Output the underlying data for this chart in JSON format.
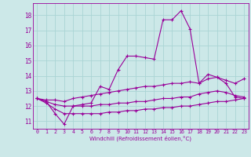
{
  "xlabel": "Windchill (Refroidissement éolien,°C)",
  "background_color": "#cce8e8",
  "grid_color": "#aad4d4",
  "line_color": "#990099",
  "xlim": [
    -0.5,
    23.5
  ],
  "ylim": [
    10.5,
    18.8
  ],
  "yticks": [
    11,
    12,
    13,
    14,
    15,
    16,
    17,
    18
  ],
  "xticks": [
    0,
    1,
    2,
    3,
    4,
    5,
    6,
    7,
    8,
    9,
    10,
    11,
    12,
    13,
    14,
    15,
    16,
    17,
    18,
    19,
    20,
    21,
    22,
    23
  ],
  "series1": [
    [
      0,
      12.5
    ],
    [
      1,
      12.3
    ],
    [
      2,
      11.5
    ],
    [
      3,
      10.8
    ],
    [
      4,
      12.0
    ],
    [
      5,
      12.1
    ],
    [
      6,
      12.2
    ],
    [
      7,
      13.3
    ],
    [
      8,
      13.1
    ],
    [
      9,
      14.4
    ],
    [
      10,
      15.3
    ],
    [
      11,
      15.3
    ],
    [
      12,
      15.2
    ],
    [
      13,
      15.1
    ],
    [
      14,
      17.7
    ],
    [
      15,
      17.7
    ],
    [
      16,
      18.3
    ],
    [
      17,
      17.1
    ],
    [
      18,
      13.5
    ],
    [
      19,
      14.1
    ],
    [
      20,
      13.9
    ],
    [
      21,
      13.5
    ],
    [
      22,
      12.6
    ],
    [
      23,
      12.5
    ]
  ],
  "series2": [
    [
      0,
      12.5
    ],
    [
      1,
      12.4
    ],
    [
      2,
      12.4
    ],
    [
      3,
      12.3
    ],
    [
      4,
      12.5
    ],
    [
      5,
      12.6
    ],
    [
      6,
      12.7
    ],
    [
      7,
      12.8
    ],
    [
      8,
      12.9
    ],
    [
      9,
      13.0
    ],
    [
      10,
      13.1
    ],
    [
      11,
      13.2
    ],
    [
      12,
      13.3
    ],
    [
      13,
      13.3
    ],
    [
      14,
      13.4
    ],
    [
      15,
      13.5
    ],
    [
      16,
      13.5
    ],
    [
      17,
      13.6
    ],
    [
      18,
      13.5
    ],
    [
      19,
      13.8
    ],
    [
      20,
      13.9
    ],
    [
      21,
      13.7
    ],
    [
      22,
      13.5
    ],
    [
      23,
      13.8
    ]
  ],
  "series3": [
    [
      0,
      12.5
    ],
    [
      1,
      12.3
    ],
    [
      2,
      12.1
    ],
    [
      3,
      12.0
    ],
    [
      4,
      12.0
    ],
    [
      5,
      12.0
    ],
    [
      6,
      12.0
    ],
    [
      7,
      12.1
    ],
    [
      8,
      12.1
    ],
    [
      9,
      12.2
    ],
    [
      10,
      12.2
    ],
    [
      11,
      12.3
    ],
    [
      12,
      12.3
    ],
    [
      13,
      12.4
    ],
    [
      14,
      12.5
    ],
    [
      15,
      12.5
    ],
    [
      16,
      12.6
    ],
    [
      17,
      12.6
    ],
    [
      18,
      12.8
    ],
    [
      19,
      12.9
    ],
    [
      20,
      13.0
    ],
    [
      21,
      12.9
    ],
    [
      22,
      12.7
    ],
    [
      23,
      12.6
    ]
  ],
  "series4": [
    [
      0,
      12.5
    ],
    [
      1,
      12.2
    ],
    [
      2,
      11.8
    ],
    [
      3,
      11.5
    ],
    [
      4,
      11.5
    ],
    [
      5,
      11.5
    ],
    [
      6,
      11.5
    ],
    [
      7,
      11.5
    ],
    [
      8,
      11.6
    ],
    [
      9,
      11.6
    ],
    [
      10,
      11.7
    ],
    [
      11,
      11.7
    ],
    [
      12,
      11.8
    ],
    [
      13,
      11.8
    ],
    [
      14,
      11.9
    ],
    [
      15,
      11.9
    ],
    [
      16,
      12.0
    ],
    [
      17,
      12.0
    ],
    [
      18,
      12.1
    ],
    [
      19,
      12.2
    ],
    [
      20,
      12.3
    ],
    [
      21,
      12.3
    ],
    [
      22,
      12.4
    ],
    [
      23,
      12.5
    ]
  ]
}
